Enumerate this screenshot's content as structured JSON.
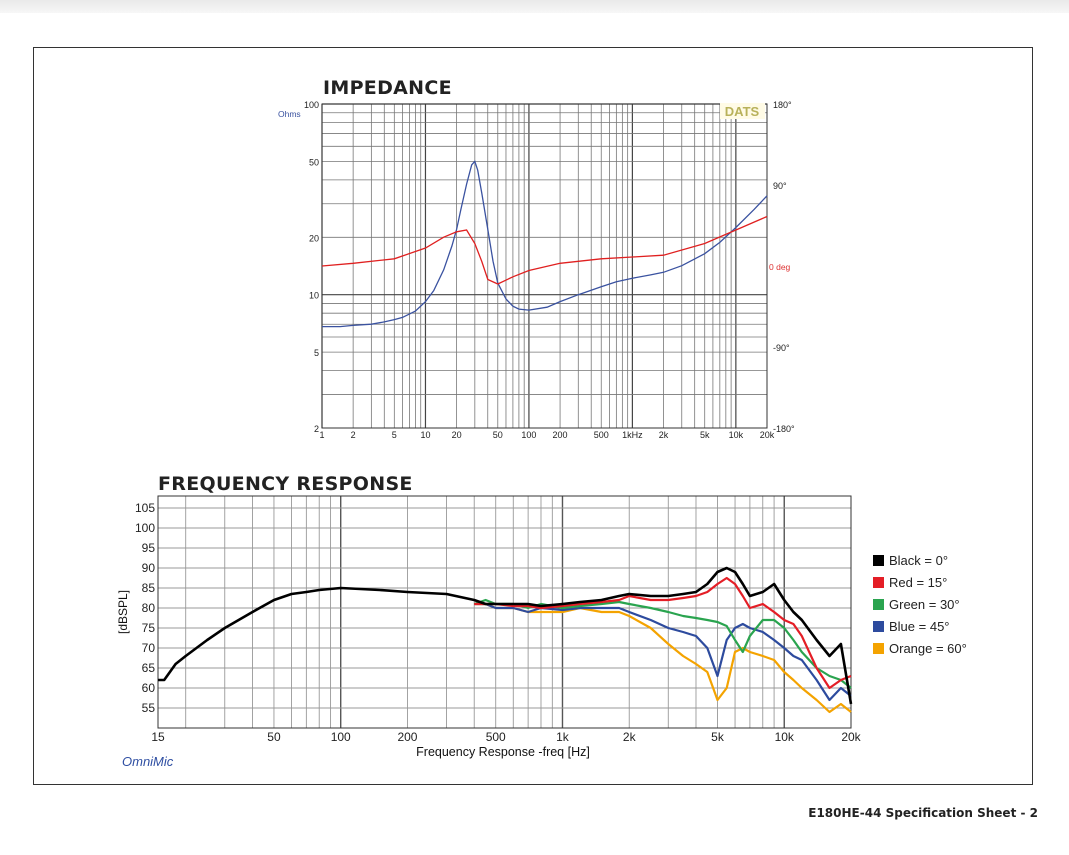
{
  "page": {
    "footer": "E180HE-44 Specification Sheet - 2"
  },
  "impedance": {
    "title": "IMPEDANCE",
    "y_unit": "Ohms",
    "phase_unit": "0 deg",
    "badge": "DATS",
    "y_ticks": [
      "100",
      "50",
      "20",
      "10",
      "5",
      "2"
    ],
    "x_ticks": [
      "1",
      "2",
      "5",
      "10",
      "20",
      "50",
      "100",
      "200",
      "500",
      "1kHz",
      "2k",
      "5k",
      "10k",
      "20k"
    ],
    "phase_ticks": [
      "180°",
      "90°",
      "-90°",
      "-180°"
    ]
  },
  "frequency_response": {
    "title": "FREQUENCY RESPONSE",
    "xlabel": "Frequency Response -freq [Hz]",
    "ylabel": "[dBSPL]",
    "brand": "OmniMic",
    "y_ticks": [
      "105",
      "100",
      "95",
      "90",
      "85",
      "80",
      "75",
      "70",
      "65",
      "60",
      "55"
    ],
    "x_ticks": [
      "15",
      "50",
      "100",
      "200",
      "500",
      "1k",
      "2k",
      "5k",
      "10k",
      "20k"
    ]
  },
  "legend": [
    {
      "label": "Black = 0°",
      "color": "#000000"
    },
    {
      "label": "Red = 15°",
      "color": "#e41e26"
    },
    {
      "label": "Green = 30°",
      "color": "#2aa44f"
    },
    {
      "label": "Blue = 45°",
      "color": "#2d4b9e"
    },
    {
      "label": "Orange = 60°",
      "color": "#f4a300"
    }
  ],
  "chart_data": [
    {
      "type": "line",
      "title": "IMPEDANCE",
      "ylabel": "Ohms",
      "xscale": "log",
      "yscale": "log",
      "xlim": [
        1,
        20000
      ],
      "ylim": [
        2,
        100
      ],
      "y2lim": [
        -180,
        180
      ],
      "grid": true,
      "series": [
        {
          "axis": "y",
          "color": "#3a52a0",
          "x": [
            1,
            1.5,
            2,
            3,
            4,
            5,
            6,
            8,
            10,
            12,
            15,
            18,
            20,
            22,
            25,
            28,
            30,
            32,
            35,
            40,
            45,
            50,
            60,
            70,
            80,
            100,
            150,
            200,
            300,
            500,
            700,
            1000,
            1500,
            2000,
            3000,
            5000,
            7000,
            10000,
            15000,
            20000
          ],
          "values": [
            6.8,
            6.8,
            6.9,
            7.0,
            7.2,
            7.4,
            7.6,
            8.2,
            9.2,
            10.5,
            13.5,
            18,
            22,
            28,
            38,
            48,
            50,
            45,
            34,
            22,
            15,
            11.5,
            9.5,
            8.7,
            8.4,
            8.3,
            8.6,
            9.2,
            10.0,
            11.0,
            11.7,
            12.2,
            12.7,
            13.1,
            14.2,
            16.4,
            18.8,
            22.5,
            28,
            33
          ]
        },
        {
          "axis": "y2",
          "color": "#e02020",
          "x": [
            1,
            2,
            5,
            10,
            15,
            20,
            25,
            30,
            35,
            40,
            50,
            70,
            100,
            200,
            500,
            1000,
            2000,
            5000,
            10000,
            20000
          ],
          "values": [
            0,
            3,
            8,
            20,
            32,
            38,
            40,
            25,
            5,
            -15,
            -20,
            -12,
            -5,
            3,
            8,
            10,
            12,
            25,
            40,
            55
          ]
        }
      ]
    },
    {
      "type": "line",
      "title": "FREQUENCY RESPONSE",
      "xlabel": "Frequency Response -freq [Hz]",
      "ylabel": "[dBSPL]",
      "xscale": "log",
      "xlim": [
        15,
        20000
      ],
      "ylim": [
        50,
        108
      ],
      "grid": true,
      "series": [
        {
          "name": "Black = 0°",
          "color": "#000000",
          "x": [
            15,
            16,
            18,
            20,
            25,
            30,
            40,
            50,
            60,
            70,
            80,
            100,
            150,
            200,
            300,
            400,
            450,
            500,
            600,
            700,
            800,
            1000,
            1200,
            1500,
            1800,
            2000,
            2500,
            3000,
            3500,
            4000,
            4500,
            5000,
            5500,
            6000,
            6500,
            7000,
            8000,
            9000,
            10000,
            11000,
            12000,
            14000,
            16000,
            18000,
            20000
          ],
          "values": [
            62,
            62,
            66,
            68,
            72,
            75,
            79,
            82,
            83.5,
            84,
            84.5,
            85,
            84.5,
            84,
            83.5,
            82,
            81,
            81,
            81,
            81,
            80.5,
            81,
            81.5,
            82,
            83,
            83.5,
            83,
            83,
            83.5,
            84,
            86,
            89,
            90,
            89,
            86,
            83,
            84,
            86,
            82,
            79,
            77,
            72,
            68,
            71,
            56
          ]
        },
        {
          "name": "Red = 15°",
          "color": "#e41e26",
          "x": [
            400,
            450,
            500,
            600,
            700,
            800,
            1000,
            1200,
            1500,
            1800,
            2000,
            2500,
            3000,
            3500,
            4000,
            4500,
            5000,
            5500,
            6000,
            6500,
            7000,
            8000,
            9000,
            10000,
            11000,
            12000,
            14000,
            16000,
            18000,
            20000
          ],
          "values": [
            81,
            81,
            81,
            80.5,
            80.5,
            80,
            80.5,
            81,
            81.5,
            82,
            83,
            82,
            82,
            82.5,
            83,
            84,
            86,
            87.5,
            86,
            83,
            80,
            81,
            79,
            77,
            76,
            73,
            65,
            60,
            62,
            63
          ]
        },
        {
          "name": "Green = 30°",
          "color": "#2aa44f",
          "x": [
            400,
            450,
            500,
            600,
            700,
            800,
            1000,
            1200,
            1500,
            1800,
            2000,
            2500,
            3000,
            3500,
            4000,
            4500,
            5000,
            5500,
            6000,
            6500,
            7000,
            8000,
            9000,
            10000,
            11000,
            12000,
            14000,
            16000,
            18000,
            20000
          ],
          "values": [
            81,
            82,
            81,
            81,
            80,
            81,
            80,
            80.5,
            81,
            81.5,
            81,
            80,
            79,
            78,
            77.5,
            77,
            76.5,
            75.5,
            72,
            69,
            73,
            77,
            77,
            75,
            72,
            69,
            65,
            63,
            62,
            60
          ]
        },
        {
          "name": "Blue = 45°",
          "color": "#2d4b9e",
          "x": [
            400,
            450,
            500,
            600,
            700,
            800,
            1000,
            1200,
            1500,
            1800,
            2000,
            2500,
            3000,
            3500,
            4000,
            4500,
            5000,
            5500,
            6000,
            6500,
            7000,
            8000,
            9000,
            10000,
            11000,
            12000,
            14000,
            16000,
            18000,
            20000
          ],
          "values": [
            81,
            81,
            80,
            80,
            79,
            80,
            79.5,
            80,
            80,
            80,
            79,
            77,
            75,
            74,
            73,
            70,
            63,
            72,
            75,
            76,
            75,
            74,
            72,
            70,
            68,
            67,
            62,
            57,
            60,
            58
          ]
        },
        {
          "name": "Orange = 60°",
          "color": "#f4a300",
          "x": [
            400,
            450,
            500,
            600,
            700,
            800,
            1000,
            1200,
            1500,
            1800,
            2000,
            2500,
            3000,
            3500,
            4000,
            4500,
            5000,
            5500,
            6000,
            6500,
            7000,
            8000,
            9000,
            10000,
            11000,
            12000,
            14000,
            16000,
            18000,
            20000
          ],
          "values": [
            81,
            81,
            80,
            80,
            79,
            79,
            79,
            80,
            79,
            79,
            78,
            75,
            71,
            68,
            66,
            64,
            57,
            60,
            69,
            70,
            69,
            68,
            67,
            64,
            62,
            60,
            57,
            54,
            56,
            54
          ]
        }
      ]
    }
  ]
}
